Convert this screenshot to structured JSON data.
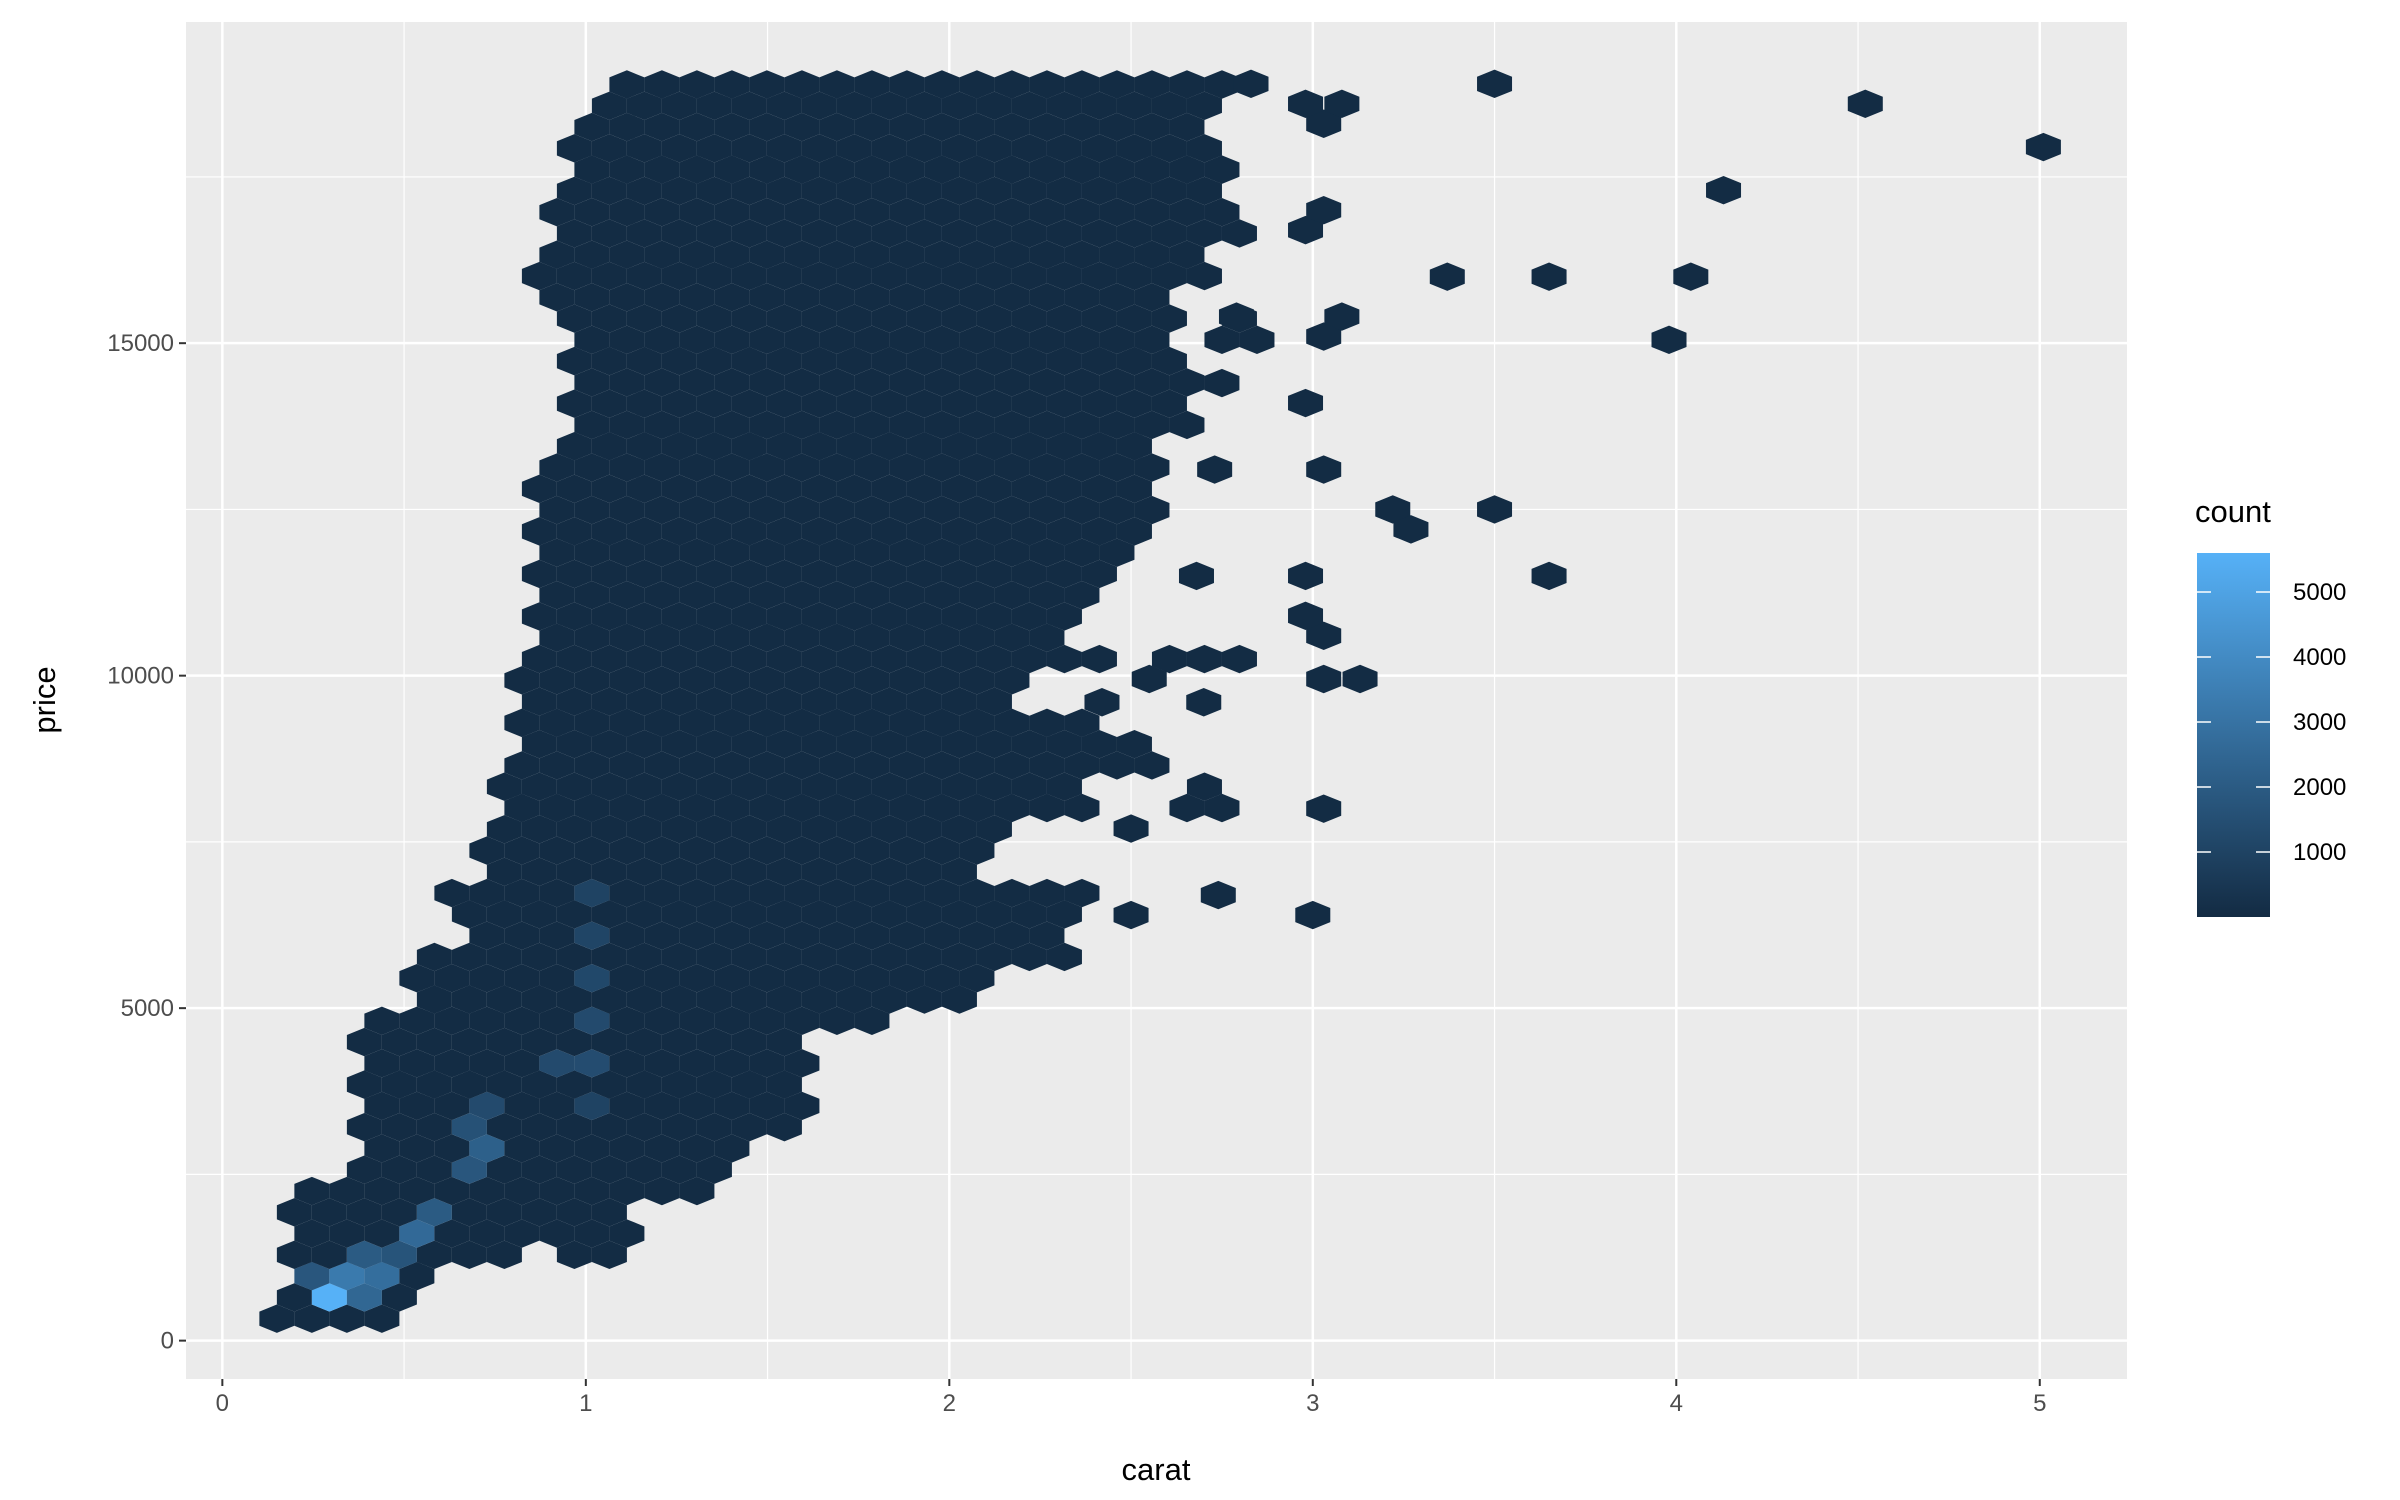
{
  "chart_data": {
    "type": "hexbin",
    "title": "",
    "xlabel": "carat",
    "ylabel": "price",
    "xlim": [
      -0.1,
      5.24
    ],
    "ylim": [
      -577,
      19830
    ],
    "x_ticks": [
      "0",
      "1",
      "2",
      "3",
      "4",
      "5"
    ],
    "y_ticks": [
      "0",
      "5000",
      "10000",
      "15000"
    ],
    "grid": true,
    "legend": {
      "title": "count",
      "position": "right",
      "range": [
        1,
        5600
      ],
      "labels": [
        "1000",
        "2000",
        "3000",
        "4000",
        "5000"
      ],
      "low_color": "#132B43",
      "high_color": "#56B1F7"
    },
    "filled_bins_by_price_band": [
      {
        "price": 0,
        "carat": [
          [
            0.15,
            0.48
          ]
        ]
      },
      {
        "price": 500,
        "carat": [
          [
            0.2,
            0.52
          ]
        ]
      },
      {
        "price": 1000,
        "carat": [
          [
            0.24,
            0.75
          ],
          [
            0.98,
            1.07
          ]
        ]
      },
      {
        "price": 1500,
        "carat": [
          [
            0.24,
            0.92
          ],
          [
            0.96,
            1.07
          ]
        ]
      },
      {
        "price": 2000,
        "carat": [
          [
            0.28,
            1.26
          ]
        ]
      },
      {
        "price": 2500,
        "carat": [
          [
            0.43,
            1.39
          ]
        ]
      },
      {
        "price": 3000,
        "carat": [
          [
            0.43,
            1.58
          ]
        ]
      },
      {
        "price": 3500,
        "carat": [
          [
            0.43,
            1.55
          ]
        ]
      },
      {
        "price": 4000,
        "carat": [
          [
            0.43,
            1.34
          ],
          [
            1.42,
            1.55
          ]
        ]
      },
      {
        "price": 4500,
        "carat": [
          [
            0.48,
            1.58
          ],
          [
            1.68,
            1.77
          ]
        ]
      },
      {
        "price": 5000,
        "carat": [
          [
            0.54,
            2.07
          ]
        ]
      },
      {
        "price": 5500,
        "carat": [
          [
            0.62,
            2.33
          ]
        ]
      },
      {
        "price": 6000,
        "carat": [
          [
            0.7,
            2.3
          ]
        ]
      },
      {
        "price": 6500,
        "carat": [
          [
            0.64,
            0.66
          ],
          [
            0.77,
            2.32
          ]
        ]
      },
      {
        "price": 7000,
        "carat": [
          [
            0.77,
            2.03
          ]
        ]
      },
      {
        "price": 7500,
        "carat": [
          [
            0.79,
            2.11
          ]
        ]
      },
      {
        "price": 8000,
        "carat": [
          [
            0.79,
            2.36
          ],
          [
            2.66,
            2.75
          ]
        ]
      },
      {
        "price": 8500,
        "carat": [
          [
            0.83,
            2.53
          ]
        ]
      },
      {
        "price": 9000,
        "carat": [
          [
            0.83,
            2.36
          ]
        ]
      },
      {
        "price": 9500,
        "carat": [
          [
            0.85,
            2.15
          ]
        ]
      },
      {
        "price": 10000,
        "carat": [
          [
            0.92,
            2.45
          ],
          [
            2.62,
            2.77
          ]
        ]
      },
      {
        "price": 10500,
        "carat": [
          [
            0.92,
            2.28
          ]
        ]
      },
      {
        "price": 11000,
        "carat": [
          [
            0.92,
            2.32
          ]
        ]
      },
      {
        "price": 11500,
        "carat": [
          [
            0.92,
            2.45
          ]
        ]
      },
      {
        "price": 12000,
        "carat": [
          [
            0.92,
            2.53
          ]
        ]
      },
      {
        "price": 12500,
        "carat": [
          [
            0.92,
            2.47
          ]
        ]
      },
      {
        "price": 13000,
        "carat": [
          [
            0.96,
            2.53
          ]
        ]
      },
      {
        "price": 13500,
        "carat": [
          [
            0.97,
            2.66
          ]
        ]
      },
      {
        "price": 14000,
        "carat": [
          [
            0.97,
            2.62
          ]
        ]
      },
      {
        "price": 14500,
        "carat": [
          [
            0.97,
            2.62
          ]
        ]
      },
      {
        "price": 15000,
        "carat": [
          [
            0.97,
            2.56
          ],
          [
            2.79,
            2.83
          ]
        ]
      },
      {
        "price": 15500,
        "carat": [
          [
            0.92,
            2.58
          ]
        ]
      },
      {
        "price": 16000,
        "carat": [
          [
            0.92,
            2.68
          ]
        ]
      },
      {
        "price": 16500,
        "carat": [
          [
            0.96,
            2.77
          ]
        ]
      },
      {
        "price": 17000,
        "carat": [
          [
            0.97,
            2.75
          ]
        ]
      },
      {
        "price": 17500,
        "carat": [
          [
            0.97,
            2.73
          ]
        ]
      },
      {
        "price": 18000,
        "carat": [
          [
            1.0,
            2.66
          ]
        ]
      },
      {
        "price": 18500,
        "carat": [
          [
            1.07,
            2.71
          ]
        ]
      }
    ],
    "isolated_bins": [
      [
        2.5,
        6400
      ],
      [
        3.0,
        6400
      ],
      [
        2.74,
        6700
      ],
      [
        2.5,
        7700
      ],
      [
        3.03,
        8000
      ],
      [
        2.42,
        9600
      ],
      [
        2.7,
        9600
      ],
      [
        2.55,
        9950
      ],
      [
        3.03,
        9950
      ],
      [
        3.13,
        9950
      ],
      [
        3.03,
        10600
      ],
      [
        2.98,
        10900
      ],
      [
        2.68,
        11500
      ],
      [
        2.98,
        11500
      ],
      [
        3.65,
        11500
      ],
      [
        3.22,
        12500
      ],
      [
        3.27,
        12200
      ],
      [
        3.5,
        12500
      ],
      [
        2.73,
        13100
      ],
      [
        3.03,
        13100
      ],
      [
        2.75,
        14400
      ],
      [
        2.98,
        14100
      ],
      [
        2.79,
        15400
      ],
      [
        3.03,
        15100
      ],
      [
        3.08,
        15400
      ],
      [
        3.98,
        15050
      ],
      [
        3.37,
        16000
      ],
      [
        3.65,
        16000
      ],
      [
        4.04,
        16000
      ],
      [
        2.98,
        16700
      ],
      [
        3.03,
        17000
      ],
      [
        4.13,
        17300
      ],
      [
        5.01,
        17950
      ],
      [
        3.03,
        18300
      ],
      [
        4.52,
        18600
      ],
      [
        2.98,
        18600
      ],
      [
        3.08,
        18600
      ],
      [
        2.83,
        18900
      ],
      [
        3.5,
        18900
      ]
    ],
    "high_count_bins": [
      {
        "carat": 0.3,
        "price": 650,
        "count": 5600
      },
      {
        "carat": 0.35,
        "price": 970,
        "count": 3300
      },
      {
        "carat": 0.4,
        "price": 650,
        "count": 2500
      },
      {
        "carat": 0.45,
        "price": 970,
        "count": 2800
      },
      {
        "carat": 0.25,
        "price": 970,
        "count": 1800
      },
      {
        "carat": 0.4,
        "price": 1290,
        "count": 2000
      },
      {
        "carat": 0.5,
        "price": 1290,
        "count": 1700
      },
      {
        "carat": 0.52,
        "price": 1610,
        "count": 2600
      },
      {
        "carat": 0.55,
        "price": 1930,
        "count": 2000
      },
      {
        "carat": 0.62,
        "price": 1930,
        "count": 1500
      },
      {
        "carat": 0.72,
        "price": 2570,
        "count": 1800
      },
      {
        "carat": 0.72,
        "price": 2890,
        "count": 2200
      },
      {
        "carat": 0.67,
        "price": 3210,
        "count": 1600
      },
      {
        "carat": 0.77,
        "price": 3530,
        "count": 1300
      },
      {
        "carat": 0.9,
        "price": 4170,
        "count": 1300
      },
      {
        "carat": 1.0,
        "price": 4170,
        "count": 1400
      },
      {
        "carat": 1.0,
        "price": 4810,
        "count": 1300
      },
      {
        "carat": 1.02,
        "price": 5450,
        "count": 1200
      },
      {
        "carat": 1.02,
        "price": 6090,
        "count": 1100
      },
      {
        "carat": 1.0,
        "price": 6730,
        "count": 1000
      },
      {
        "carat": 1.05,
        "price": 3530,
        "count": 1000
      }
    ]
  }
}
